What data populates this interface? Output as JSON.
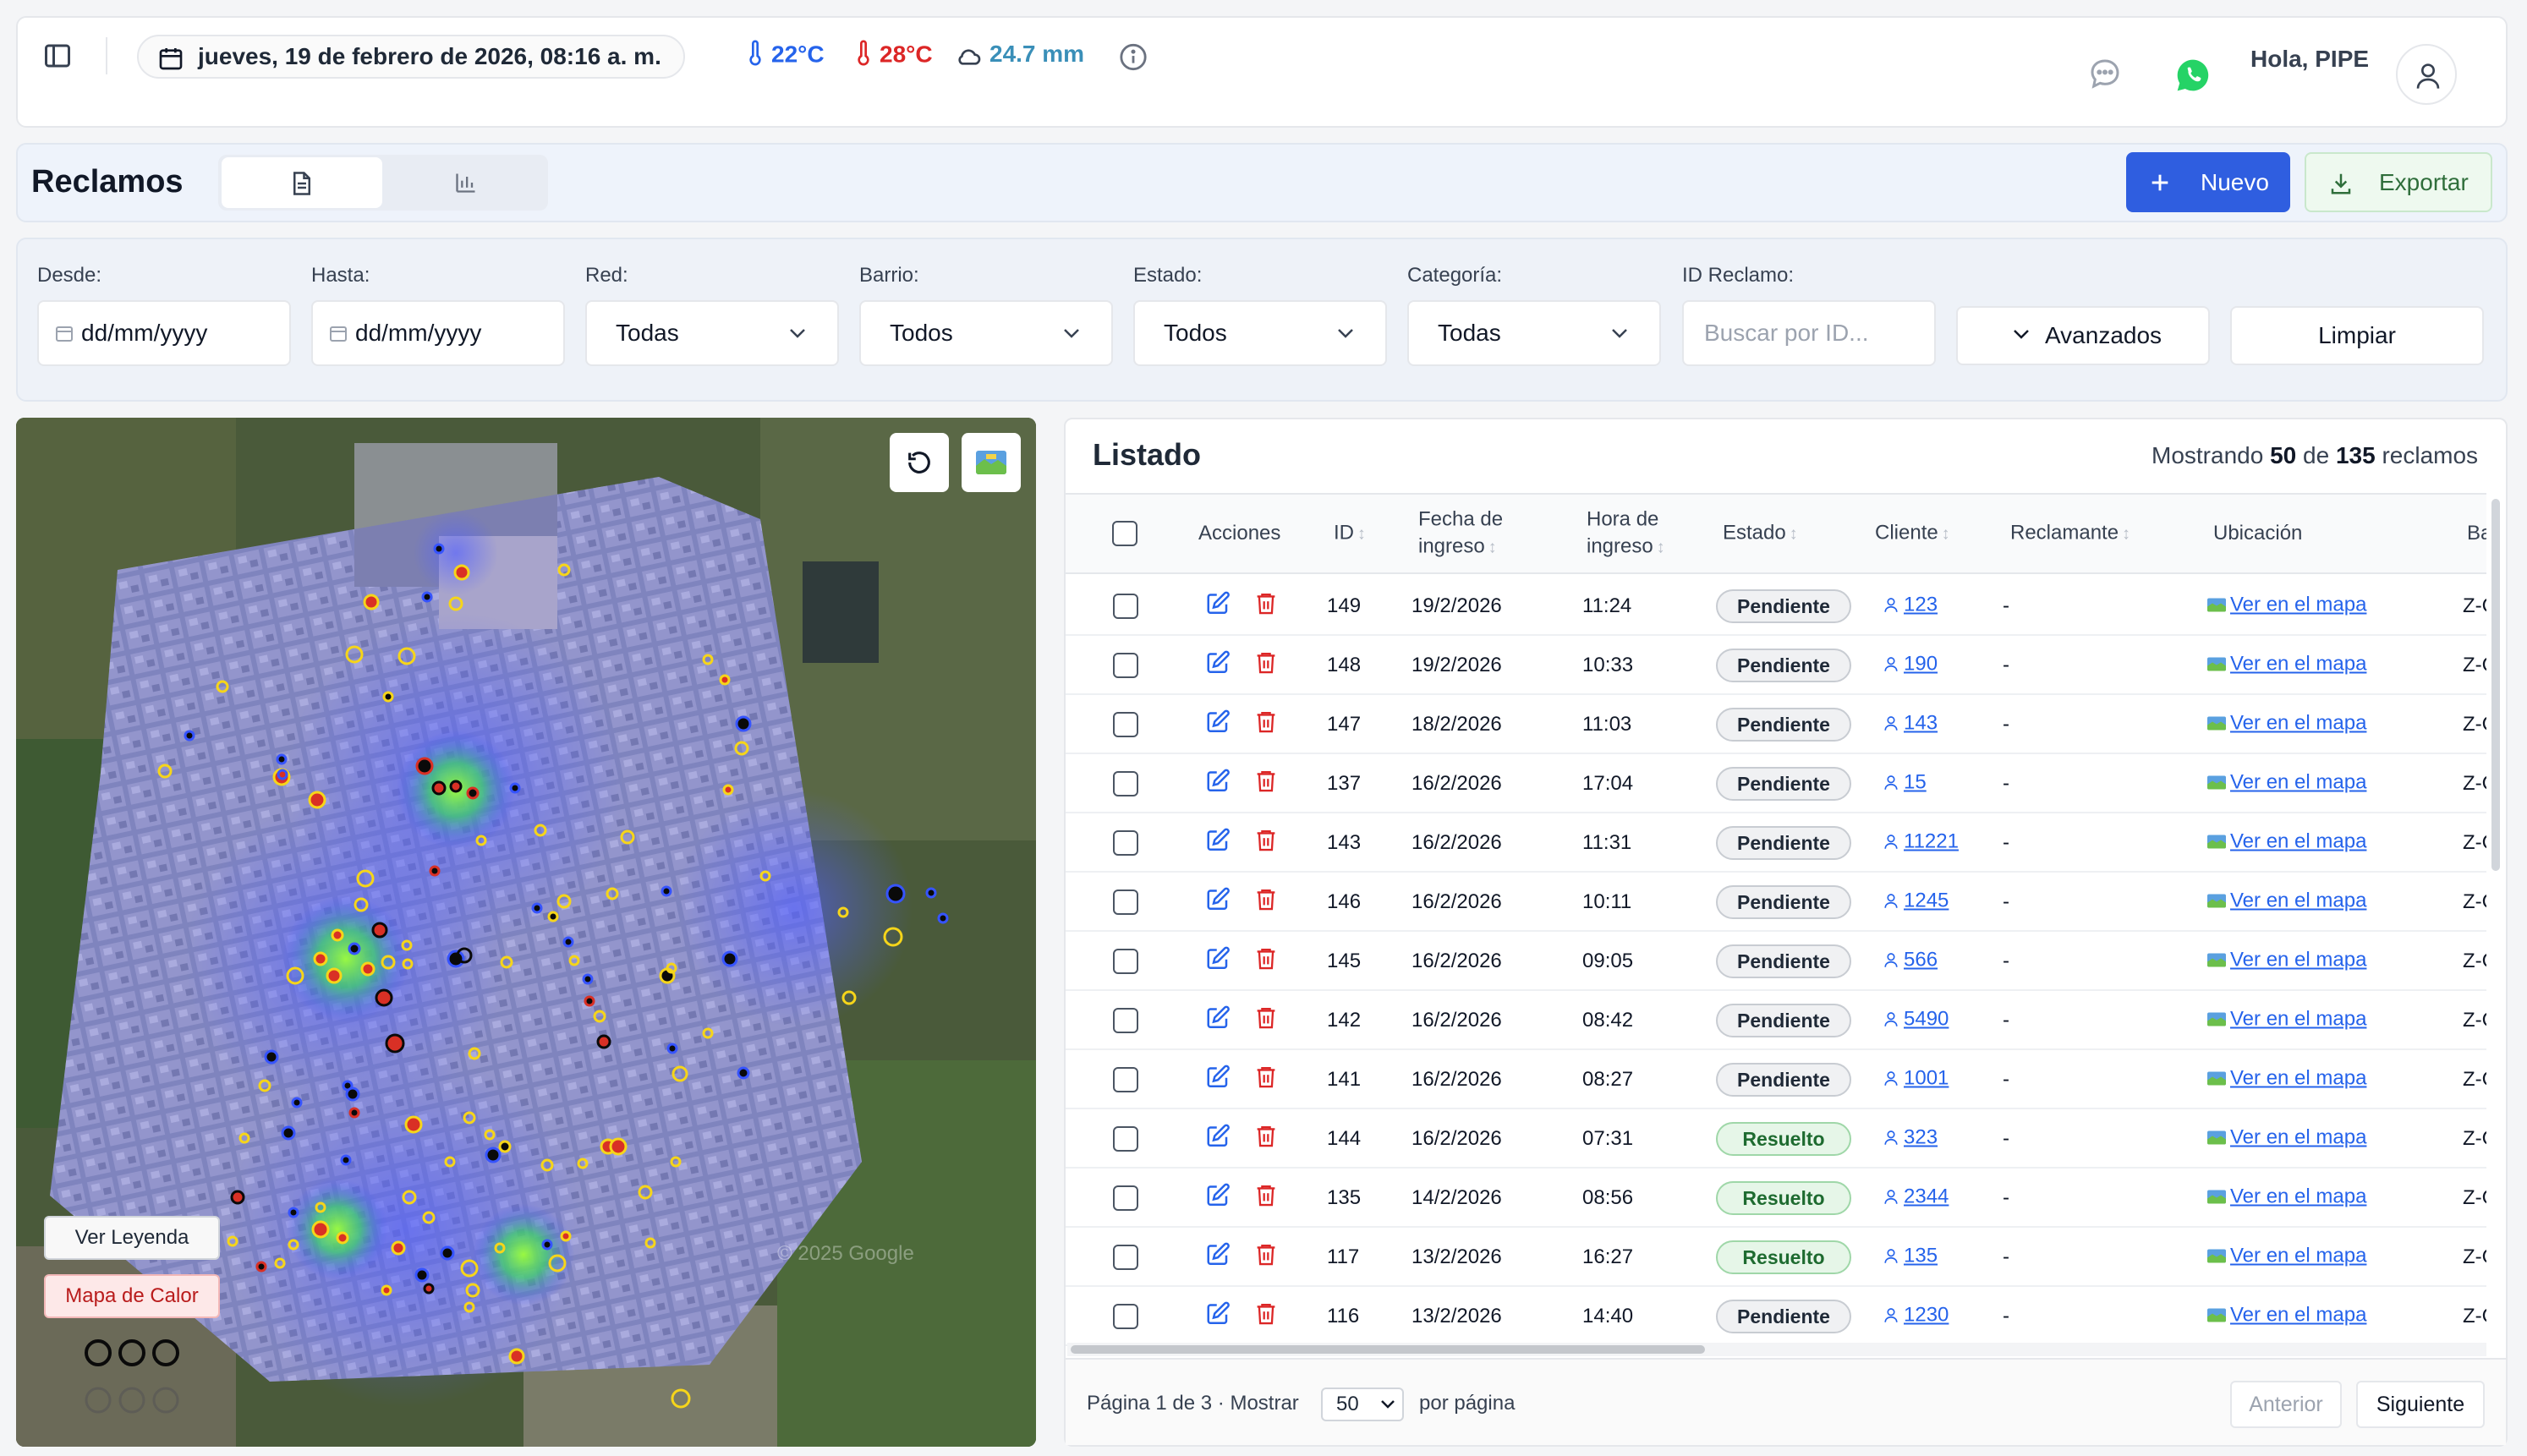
{
  "topbar": {
    "date": "jueves, 19 de febrero de 2026, 08:16 a. m.",
    "temp_min": "22°C",
    "temp_max": "28°C",
    "rain": "24.7 mm",
    "greeting": "Hola, PIPE",
    "icons": [
      "sidebar-toggle-icon",
      "calendar-icon",
      "thermometer-icon",
      "cloud-icon",
      "info-icon",
      "chat-icon",
      "whatsapp-icon",
      "user-icon"
    ]
  },
  "header": {
    "title": "Reclamos",
    "new_label": "Nuevo",
    "export_label": "Exportar"
  },
  "filters": {
    "desde_label": "Desde:",
    "desde_value": "dd/mm/yyyy",
    "hasta_label": "Hasta:",
    "hasta_value": "dd/mm/yyyy",
    "red_label": "Red:",
    "red_value": "Todas",
    "barrio_label": "Barrio:",
    "barrio_value": "Todos",
    "estado_label": "Estado:",
    "estado_value": "Todos",
    "categoria_label": "Categoría:",
    "categoria_value": "Todas",
    "id_label": "ID Reclamo:",
    "id_placeholder": "Buscar por ID...",
    "advanced_label": "Avanzados",
    "clear_label": "Limpiar"
  },
  "map": {
    "legend_button": "Ver Leyenda",
    "heatmap_button": "Mapa de Calor",
    "watermark": "© 2025 Google"
  },
  "listado": {
    "title": "Listado",
    "count_prefix": "Mostrando",
    "count_shown": "50",
    "count_middle": "de",
    "count_total": "135",
    "count_suffix": "reclamos",
    "columns": {
      "acciones": "Acciones",
      "id": "ID",
      "fecha_1": "Fecha de",
      "fecha_2": "ingreso",
      "hora_1": "Hora de",
      "hora_2": "ingreso",
      "estado": "Estado",
      "cliente": "Cliente",
      "reclamante": "Reclamante",
      "ubicacion": "Ubicación",
      "barrio": "Ba"
    },
    "rows": [
      {
        "id": "149",
        "fecha": "19/2/2026",
        "hora": "11:24",
        "estado": "Pendiente",
        "cliente": "123",
        "reclamante": "-",
        "ubicacion": "Ver en el mapa",
        "barrio": "Z-C"
      },
      {
        "id": "148",
        "fecha": "19/2/2026",
        "hora": "10:33",
        "estado": "Pendiente",
        "cliente": "190",
        "reclamante": "-",
        "ubicacion": "Ver en el mapa",
        "barrio": "Z-C"
      },
      {
        "id": "147",
        "fecha": "18/2/2026",
        "hora": "11:03",
        "estado": "Pendiente",
        "cliente": "143",
        "reclamante": "-",
        "ubicacion": "Ver en el mapa",
        "barrio": "Z-C"
      },
      {
        "id": "137",
        "fecha": "16/2/2026",
        "hora": "17:04",
        "estado": "Pendiente",
        "cliente": "15",
        "reclamante": "-",
        "ubicacion": "Ver en el mapa",
        "barrio": "Z-C"
      },
      {
        "id": "143",
        "fecha": "16/2/2026",
        "hora": "11:31",
        "estado": "Pendiente",
        "cliente": "11221",
        "reclamante": "-",
        "ubicacion": "Ver en el mapa",
        "barrio": "Z-C"
      },
      {
        "id": "146",
        "fecha": "16/2/2026",
        "hora": "10:11",
        "estado": "Pendiente",
        "cliente": "1245",
        "reclamante": "-",
        "ubicacion": "Ver en el mapa",
        "barrio": "Z-C"
      },
      {
        "id": "145",
        "fecha": "16/2/2026",
        "hora": "09:05",
        "estado": "Pendiente",
        "cliente": "566",
        "reclamante": "-",
        "ubicacion": "Ver en el mapa",
        "barrio": "Z-C"
      },
      {
        "id": "142",
        "fecha": "16/2/2026",
        "hora": "08:42",
        "estado": "Pendiente",
        "cliente": "5490",
        "reclamante": "-",
        "ubicacion": "Ver en el mapa",
        "barrio": "Z-C"
      },
      {
        "id": "141",
        "fecha": "16/2/2026",
        "hora": "08:27",
        "estado": "Pendiente",
        "cliente": "1001",
        "reclamante": "-",
        "ubicacion": "Ver en el mapa",
        "barrio": "Z-C"
      },
      {
        "id": "144",
        "fecha": "16/2/2026",
        "hora": "07:31",
        "estado": "Resuelto",
        "cliente": "323",
        "reclamante": "-",
        "ubicacion": "Ver en el mapa",
        "barrio": "Z-C"
      },
      {
        "id": "135",
        "fecha": "14/2/2026",
        "hora": "08:56",
        "estado": "Resuelto",
        "cliente": "2344",
        "reclamante": "-",
        "ubicacion": "Ver en el mapa",
        "barrio": "Z-C"
      },
      {
        "id": "117",
        "fecha": "13/2/2026",
        "hora": "16:27",
        "estado": "Resuelto",
        "cliente": "135",
        "reclamante": "-",
        "ubicacion": "Ver en el mapa",
        "barrio": "Z-C"
      },
      {
        "id": "116",
        "fecha": "13/2/2026",
        "hora": "14:40",
        "estado": "Pendiente",
        "cliente": "1230",
        "reclamante": "-",
        "ubicacion": "Ver en el mapa",
        "barrio": "Z-C"
      }
    ],
    "pagination": {
      "info": "Página 1 de 3",
      "show_label": "· Mostrar",
      "page_size": "50",
      "per_page_label": "por página",
      "prev_label": "Anterior",
      "next_label": "Siguiente"
    }
  },
  "colors": {
    "primary": "#2f5ee0",
    "temp_min": "#2563eb",
    "temp_max": "#dc2626",
    "rain": "#3a8fb8",
    "pendiente": "#f0f1f3",
    "resuelto": "#e6f6e8",
    "whatsapp": "#25d366"
  }
}
